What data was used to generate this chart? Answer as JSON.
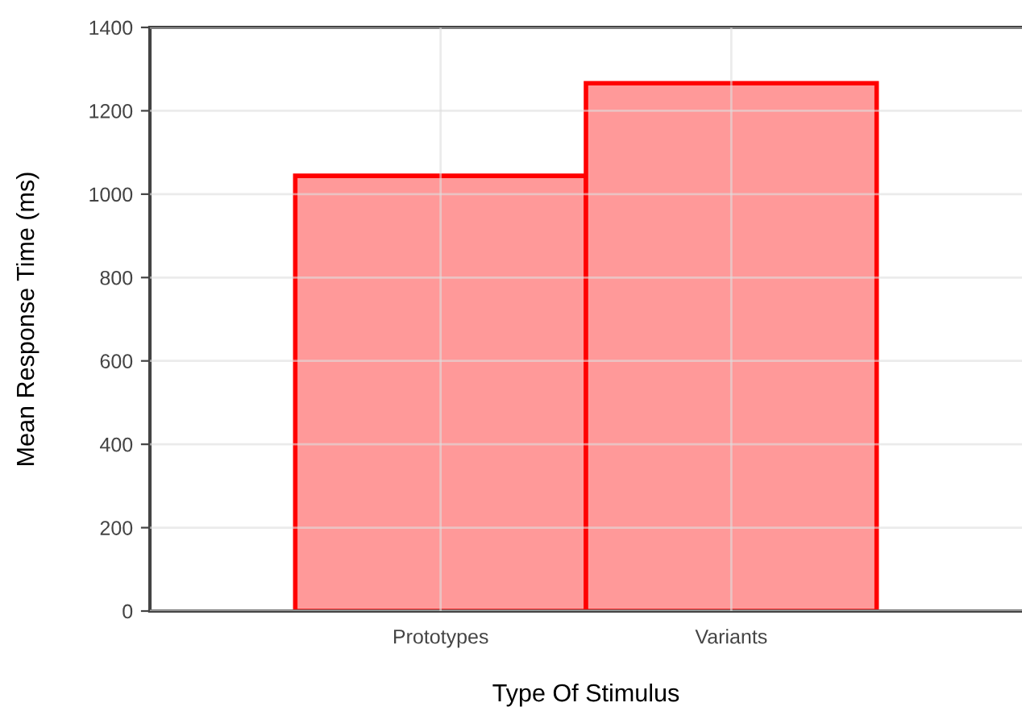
{
  "chart_data": {
    "type": "bar",
    "xlabel": "Type Of Stimulus",
    "ylabel": "Mean Response Time (ms)",
    "categories": [
      "Prototypes",
      "Variants"
    ],
    "series": [
      {
        "color": "#ff9999",
        "values": [
          1044,
          1266
        ]
      }
    ],
    "ylim": [
      0,
      1400
    ],
    "yticks": [
      0,
      200,
      400,
      600,
      800,
      1000,
      1200,
      1400
    ],
    "grid": true
  }
}
